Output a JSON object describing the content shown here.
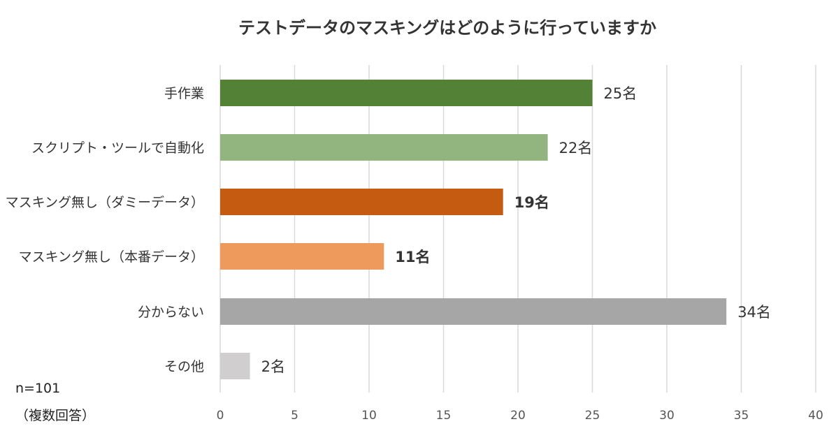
{
  "chart_data": {
    "type": "bar",
    "orientation": "horizontal",
    "title": "テストデータのマスキングはどのように行っていますか",
    "categories": [
      "手作業",
      "スクリプト・ツールで自動化",
      "マスキング無し（ダミーデータ）",
      "マスキング無し（本番データ）",
      "分からない",
      "その他"
    ],
    "values": [
      25,
      22,
      19,
      11,
      34,
      2
    ],
    "data_labels": [
      "25名",
      "22名",
      "19名",
      "11名",
      "34名",
      "2名"
    ],
    "bold_labels": [
      false,
      false,
      true,
      true,
      false,
      false
    ],
    "colors": [
      "#538135",
      "#92B47E",
      "#C55A11",
      "#EE9A5C",
      "#A6A6A6",
      "#D0CECE"
    ],
    "xlim": [
      0,
      40
    ],
    "xticks": [
      0,
      5,
      10,
      15,
      20,
      25,
      30,
      35,
      40
    ],
    "xlabel": "",
    "ylabel": "",
    "grid": "vertical",
    "legend": "none"
  },
  "notes": {
    "sample_size": "n=101",
    "answer_type": "（複数回答）"
  }
}
